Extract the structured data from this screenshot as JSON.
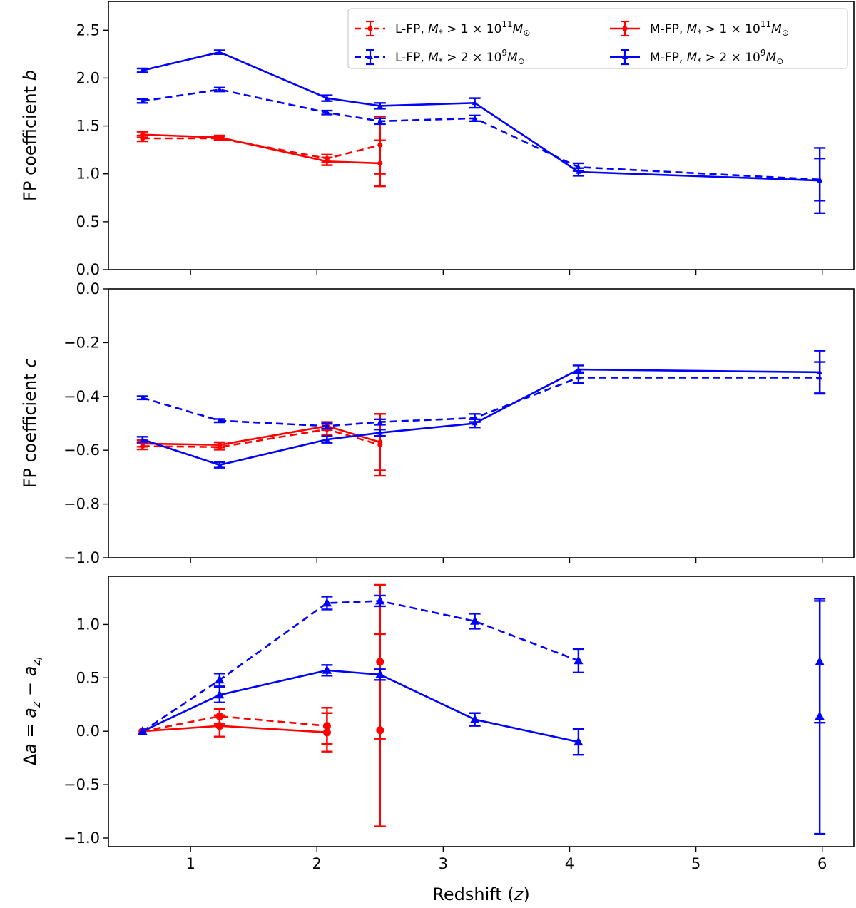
{
  "chart_data": [
    {
      "type": "line",
      "panel": "top",
      "ylabel": "FP coefficient b",
      "ylabel_prefix": "FP coefficient ",
      "ylabel_symbol": "b",
      "xlim": [
        0.35,
        6.25
      ],
      "ylim": [
        0.0,
        2.8
      ],
      "yticks": [
        0.0,
        0.5,
        1.0,
        1.5,
        2.0,
        2.5
      ],
      "ytick_labels": [
        "0.0",
        "0.5",
        "1.0",
        "1.5",
        "2.0",
        "2.5"
      ],
      "series": [
        {
          "key": "lfp_high",
          "x": [
            0.62,
            1.23,
            2.08,
            2.5
          ],
          "y": [
            1.37,
            1.37,
            1.16,
            1.3
          ],
          "err": [
            0.03,
            0.02,
            0.04,
            0.3
          ]
        },
        {
          "key": "mfp_high",
          "x": [
            0.62,
            1.23,
            2.08,
            2.5
          ],
          "y": [
            1.41,
            1.38,
            1.13,
            1.11
          ],
          "err": [
            0.03,
            0.02,
            0.04,
            0.24
          ]
        },
        {
          "key": "lfp_low",
          "x": [
            0.62,
            1.23,
            2.08,
            2.5,
            3.25,
            4.07,
            5.98
          ],
          "y": [
            1.76,
            1.88,
            1.64,
            1.55,
            1.58,
            1.07,
            0.94
          ],
          "err": [
            0.02,
            0.02,
            0.02,
            0.03,
            0.03,
            0.04,
            0.22
          ]
        },
        {
          "key": "mfp_low",
          "x": [
            0.62,
            1.23,
            2.08,
            2.5,
            3.25,
            4.07,
            5.98
          ],
          "y": [
            2.08,
            2.27,
            1.79,
            1.71,
            1.74,
            1.02,
            0.93
          ],
          "err": [
            0.02,
            0.02,
            0.03,
            0.03,
            0.05,
            0.04,
            0.34
          ]
        }
      ]
    },
    {
      "type": "line",
      "panel": "middle",
      "ylabel": "FP coefficient c",
      "ylabel_prefix": "FP coefficient ",
      "ylabel_symbol": "c",
      "xlim": [
        0.35,
        6.25
      ],
      "ylim": [
        -1.0,
        0.0
      ],
      "yticks": [
        -1.0,
        -0.8,
        -0.6,
        -0.4,
        -0.2,
        0.0
      ],
      "ytick_labels": [
        "−1.0",
        "−0.8",
        "−0.6",
        "−0.4",
        "−0.2",
        "0.0"
      ],
      "series": [
        {
          "key": "lfp_high",
          "x": [
            0.62,
            1.23,
            2.08,
            2.5
          ],
          "y": [
            -0.585,
            -0.588,
            -0.522,
            -0.58
          ],
          "err": [
            0.012,
            0.01,
            0.02,
            0.115
          ]
        },
        {
          "key": "mfp_high",
          "x": [
            0.62,
            1.23,
            2.08,
            2.5
          ],
          "y": [
            -0.575,
            -0.58,
            -0.51,
            -0.57
          ],
          "err": [
            0.012,
            0.01,
            0.015,
            0.105
          ]
        },
        {
          "key": "lfp_low",
          "x": [
            0.62,
            1.23,
            2.08,
            2.5,
            3.25,
            4.07,
            5.98
          ],
          "y": [
            -0.405,
            -0.49,
            -0.51,
            -0.495,
            -0.48,
            -0.33,
            -0.33
          ],
          "err": [
            0.006,
            0.006,
            0.01,
            0.01,
            0.015,
            0.02,
            0.058
          ]
        },
        {
          "key": "mfp_low",
          "x": [
            0.62,
            1.23,
            2.08,
            2.5,
            3.25,
            4.07,
            5.98
          ],
          "y": [
            -0.56,
            -0.655,
            -0.56,
            -0.535,
            -0.5,
            -0.3,
            -0.31
          ],
          "err": [
            0.01,
            0.01,
            0.012,
            0.012,
            0.015,
            0.015,
            0.08
          ]
        }
      ]
    },
    {
      "type": "line",
      "panel": "bottom",
      "ylabel": "Δa = a_z − a_zl",
      "xlabel": "Redshift (z)",
      "xlabel_prefix": "Redshift (",
      "xlabel_symbol": "z",
      "xlabel_suffix": ")",
      "xlim": [
        0.35,
        6.25
      ],
      "ylim": [
        -1.08,
        1.45
      ],
      "xticks": [
        1,
        2,
        3,
        4,
        5,
        6
      ],
      "xtick_labels": [
        "1",
        "2",
        "3",
        "4",
        "5",
        "6"
      ],
      "yticks": [
        -1.0,
        -0.5,
        0.0,
        0.5,
        1.0
      ],
      "ytick_labels": [
        "−1.0",
        "−0.5",
        "0.0",
        "0.5",
        "1.0"
      ],
      "series": [
        {
          "key": "lfp_high",
          "x": [
            0.62,
            1.23,
            2.08
          ],
          "y": [
            0.0,
            0.14,
            0.05
          ],
          "err": [
            0.0,
            0.07,
            0.17
          ]
        },
        {
          "key": "lfp_high_isolated",
          "x": [
            2.5
          ],
          "y": [
            0.65
          ],
          "err": [
            0.72
          ]
        },
        {
          "key": "mfp_high",
          "x": [
            0.62,
            1.23,
            2.08
          ],
          "y": [
            0.0,
            0.05,
            -0.01
          ],
          "err": [
            0.0,
            0.1,
            0.18
          ]
        },
        {
          "key": "mfp_high_isolated",
          "x": [
            2.5
          ],
          "y": [
            0.01
          ],
          "err": [
            0.9
          ]
        },
        {
          "key": "lfp_low",
          "x": [
            0.62,
            1.23,
            2.08,
            2.5,
            3.25,
            4.07
          ],
          "y": [
            0.0,
            0.48,
            1.2,
            1.22,
            1.03,
            0.66
          ],
          "err": [
            0.0,
            0.06,
            0.06,
            0.05,
            0.07,
            0.11
          ]
        },
        {
          "key": "lfp_low_isolated",
          "x": [
            5.98
          ],
          "y": [
            0.65
          ],
          "err": [
            0.57
          ]
        },
        {
          "key": "mfp_low",
          "x": [
            0.62,
            1.23,
            2.08,
            2.5,
            3.25,
            4.07
          ],
          "y": [
            0.0,
            0.34,
            0.57,
            0.53,
            0.11,
            -0.1
          ],
          "err": [
            0.0,
            0.07,
            0.05,
            0.05,
            0.06,
            0.12
          ]
        },
        {
          "key": "mfp_low_isolated",
          "x": [
            5.98
          ],
          "y": [
            0.14
          ],
          "err": [
            1.1
          ]
        }
      ]
    }
  ],
  "legend": {
    "placement": "upper-right of top panel",
    "entries": [
      {
        "key": "lfp_high",
        "prefix": "L-FP, ",
        "mass": "M",
        "sub": "*",
        "op": " > 1 × 10",
        "exp": "11",
        "unit": "M",
        "unit_sub": "⊙",
        "color": "#ff0000",
        "dashed": true
      },
      {
        "key": "lfp_low",
        "prefix": "L-FP, ",
        "mass": "M",
        "sub": "*",
        "op": " > 2 × 10",
        "exp": "9",
        "unit": "M",
        "unit_sub": "⊙",
        "color": "#0000ff",
        "dashed": true
      },
      {
        "key": "mfp_high",
        "prefix": "M-FP, ",
        "mass": "M",
        "sub": "*",
        "op": " > 1 × 10",
        "exp": "11",
        "unit": "M",
        "unit_sub": "⊙",
        "color": "#ff0000",
        "dashed": false
      },
      {
        "key": "mfp_low",
        "prefix": "M-FP, ",
        "mass": "M",
        "sub": "*",
        "op": " > 2 × 10",
        "exp": "9",
        "unit": "M",
        "unit_sub": "⊙",
        "color": "#0000ff",
        "dashed": false
      }
    ]
  },
  "styles": {
    "lfp_high": {
      "color": "#ff0000",
      "dashed": true,
      "marker": "circle"
    },
    "lfp_high_isolated": {
      "color": "#ff0000",
      "dashed": true,
      "marker": "circle"
    },
    "mfp_high": {
      "color": "#ff0000",
      "dashed": false,
      "marker": "circle"
    },
    "mfp_high_isolated": {
      "color": "#ff0000",
      "dashed": false,
      "marker": "circle"
    },
    "lfp_low": {
      "color": "#0000ff",
      "dashed": true,
      "marker": "triangle"
    },
    "lfp_low_isolated": {
      "color": "#0000ff",
      "dashed": true,
      "marker": "triangle"
    },
    "mfp_low": {
      "color": "#0000ff",
      "dashed": false,
      "marker": "triangle"
    },
    "mfp_low_isolated": {
      "color": "#0000ff",
      "dashed": false,
      "marker": "triangle"
    }
  },
  "bottom_ylabel_parts": {
    "delta": "Δ",
    "a": "a",
    "eq": " = ",
    "az": "a",
    "z": "z",
    "minus": " − ",
    "azl": "a",
    "zl": "z",
    "l": "l"
  }
}
